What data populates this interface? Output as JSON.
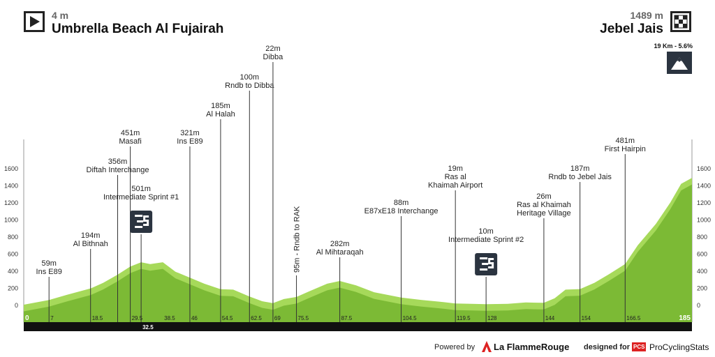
{
  "start": {
    "altitude": "4 m",
    "name": "Umbrella Beach Al Fujairah"
  },
  "finish": {
    "altitude": "1489 m",
    "name": "Jebel Jais"
  },
  "final_climb": {
    "label": "19 Km - 5.6%",
    "icon": "mountain-icon"
  },
  "footer": {
    "powered_by": "Powered by",
    "flamme_rouge": "La FlammeRouge",
    "designed_for": "designed for",
    "pcs_badge": "PCS",
    "pcs_name": "ProCyclingStats"
  },
  "colors": {
    "profile_light": "#a6d95a",
    "profile_dark": "#7cba35",
    "bar": "#111111",
    "sprint_badge": "#2b3440"
  },
  "chart_data": {
    "type": "area",
    "title": "",
    "xlabel": "",
    "ylabel": "",
    "xlim": [
      0,
      185
    ],
    "ylim": [
      -100,
      1700
    ],
    "y_ticks": [
      "0",
      "200",
      "400",
      "600",
      "800",
      "1000",
      "1200",
      "1400",
      "1600"
    ],
    "grid": false,
    "profile": {
      "km": [
        0,
        7,
        12,
        18.5,
        22,
        26,
        29.5,
        32.5,
        35,
        38.5,
        42,
        46,
        50,
        54.5,
        58,
        62.5,
        66,
        69,
        72,
        75.5,
        79,
        84,
        87.5,
        92,
        97,
        104.5,
        110,
        115,
        119.5,
        124,
        128,
        134,
        139,
        142,
        144,
        147,
        150,
        154,
        158,
        162,
        166.5,
        170,
        175,
        179,
        182,
        185
      ],
      "alt": [
        4,
        59,
        120,
        194,
        260,
        356,
        451,
        501,
        480,
        501,
        390,
        321,
        250,
        185,
        180,
        100,
        45,
        22,
        70,
        95,
        160,
        250,
        282,
        230,
        150,
        88,
        60,
        40,
        19,
        15,
        10,
        15,
        30,
        28,
        26,
        80,
        180,
        187,
        260,
        360,
        481,
        700,
        950,
        1200,
        1420,
        1489
      ]
    },
    "x_ticks": [
      {
        "km": 0,
        "label": "0"
      },
      {
        "km": 7,
        "label": "7"
      },
      {
        "km": 18.5,
        "label": "18.5"
      },
      {
        "km": 29.5,
        "label": "29.5"
      },
      {
        "km": 38.5,
        "label": "38.5"
      },
      {
        "km": 46,
        "label": "46"
      },
      {
        "km": 54.5,
        "label": "54.5"
      },
      {
        "km": 62.5,
        "label": "62.5"
      },
      {
        "km": 69,
        "label": "69"
      },
      {
        "km": 75.5,
        "label": "75.5"
      },
      {
        "km": 87.5,
        "label": "87.5"
      },
      {
        "km": 104.5,
        "label": "104.5"
      },
      {
        "km": 119.5,
        "label": "119.5"
      },
      {
        "km": 128,
        "label": "128"
      },
      {
        "km": 144,
        "label": "144"
      },
      {
        "km": 154,
        "label": "154"
      },
      {
        "km": 166.5,
        "label": "166.5"
      },
      {
        "km": 185,
        "label": "185"
      }
    ],
    "bar_markers": [
      {
        "km": 32.5,
        "label": "32.5"
      }
    ],
    "waypoints": [
      {
        "km": 7,
        "alt": 59,
        "alt_label": "59m",
        "name": "Ins E89",
        "label_top": 371
      },
      {
        "km": 18.5,
        "alt": 194,
        "alt_label": "194m",
        "name": "Al Bithnah",
        "label_top": 331
      },
      {
        "km": 26,
        "alt": 356,
        "alt_label": "356m",
        "name": "Diftah Interchange",
        "label_top": 225
      },
      {
        "km": 29.5,
        "alt": 451,
        "alt_label": "451m",
        "name": "Masafi",
        "label_top": 184
      },
      {
        "km": 32.5,
        "alt": 501,
        "alt_label": "501m",
        "name": "Intermediate Sprint #1",
        "label_top": 264,
        "sprint": true
      },
      {
        "km": 46,
        "alt": 321,
        "alt_label": "321m",
        "name": "Ins E89",
        "label_top": 184
      },
      {
        "km": 54.5,
        "alt": 185,
        "alt_label": "185m",
        "name": "Al Halah",
        "label_top": 145
      },
      {
        "km": 62.5,
        "alt": 100,
        "alt_label": "100m",
        "name": "Rndb to Dibba",
        "label_top": 104
      },
      {
        "km": 69,
        "alt": 22,
        "alt_label": "22m",
        "name": "Dibba",
        "label_top": 63
      },
      {
        "km": 75.5,
        "alt": 95,
        "alt_label": "95m - Rndb to RAK",
        "name": "",
        "vertical": true
      },
      {
        "km": 87.5,
        "alt": 282,
        "alt_label": "282m",
        "name": "Al Mihtaraqah",
        "label_top": 343
      },
      {
        "km": 104.5,
        "alt": 88,
        "alt_label": "88m",
        "name": "E87xE18 Interchange",
        "label_top": 284
      },
      {
        "km": 119.5,
        "alt": 19,
        "alt_label": "19m",
        "name": "Ras al\nKhaimah Airport",
        "label_top": 235
      },
      {
        "km": 128,
        "alt": 10,
        "alt_label": "10m",
        "name": "Intermediate Sprint #2",
        "label_top": 325,
        "sprint": true
      },
      {
        "km": 144,
        "alt": 26,
        "alt_label": "26m",
        "name": "Ras al Khaimah\nHeritage Village",
        "label_top": 275
      },
      {
        "km": 154,
        "alt": 187,
        "alt_label": "187m",
        "name": "Rndb to Jebel Jais",
        "label_top": 235
      },
      {
        "km": 166.5,
        "alt": 481,
        "alt_label": "481m",
        "name": "First Hairpin",
        "label_top": 195
      }
    ]
  }
}
